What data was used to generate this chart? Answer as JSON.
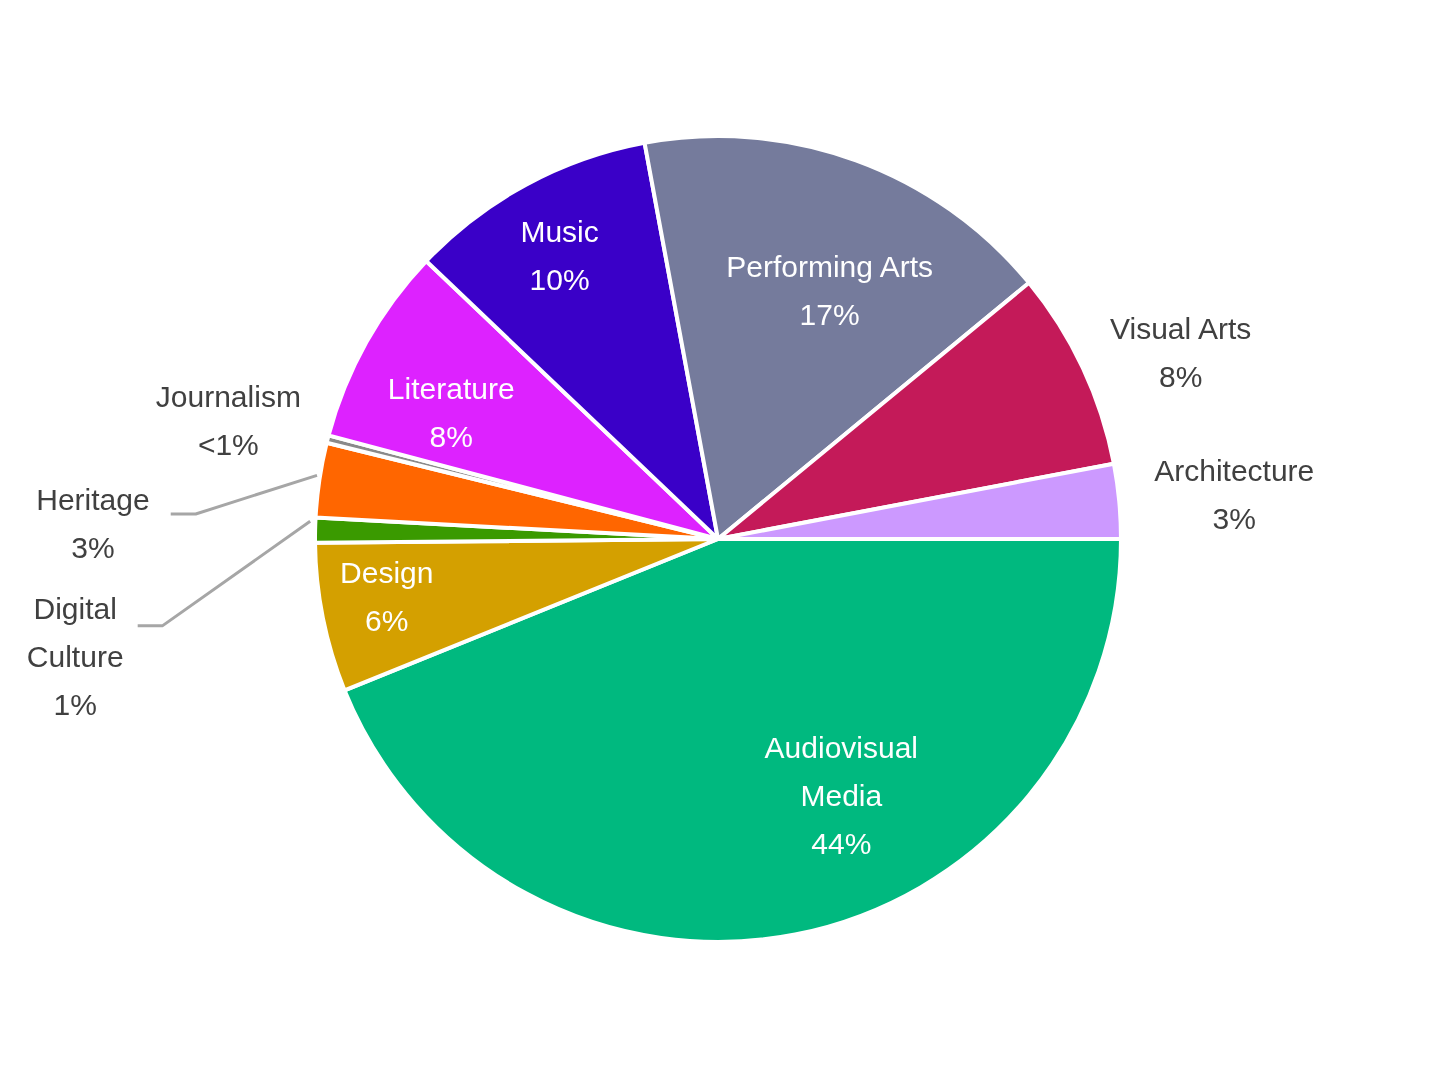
{
  "chart_data": {
    "type": "pie",
    "categories": [
      "Audiovisual Media",
      "Design",
      "Digital Culture",
      "Heritage",
      "Journalism",
      "Literature",
      "Music",
      "Performing Arts",
      "Visual Arts",
      "Architecture"
    ],
    "values": [
      44,
      6,
      1,
      3,
      0.3,
      8,
      10,
      17,
      8,
      3
    ],
    "value_labels": [
      "44%",
      "6%",
      "1%",
      "3%",
      "<1%",
      "8%",
      "10%",
      "17%",
      "8%",
      "3%"
    ],
    "colors": [
      "#00b97f",
      "#d4a000",
      "#3a9a00",
      "#ff6600",
      "#8a8a8a",
      "#dd22ff",
      "#3a00c8",
      "#757b9c",
      "#c41a59",
      "#cc99ff"
    ],
    "legend": false
  }
}
